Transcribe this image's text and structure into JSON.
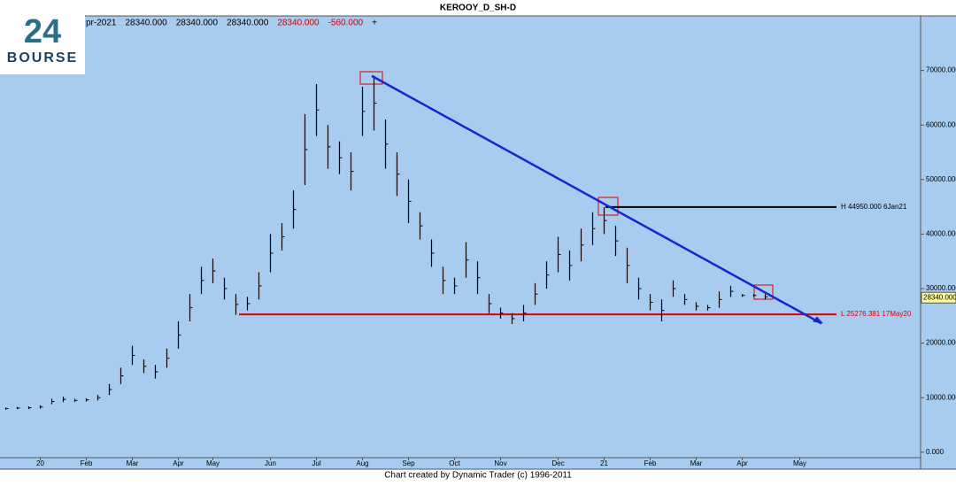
{
  "chart_data": {
    "type": "ohlc",
    "title": "KEROOY_D_SH-D",
    "header": [
      {
        "text": "pr-2021",
        "color": "#000000"
      },
      {
        "text": "28340.000",
        "color": "#000000"
      },
      {
        "text": "28340.000",
        "color": "#000000"
      },
      {
        "text": "28340.000",
        "color": "#000000"
      },
      {
        "text": "28340.000",
        "color": "#d00000"
      },
      {
        "text": "-560.000",
        "color": "#d00000"
      },
      {
        "text": "+",
        "color": "#000000"
      }
    ],
    "footer": "Chart created by Dynamic Trader  (c)  1996-2011",
    "logo": {
      "number": "24",
      "name": "BOURSE"
    },
    "categories": [
      null,
      null,
      null,
      "20",
      null,
      null,
      null,
      "Feb",
      null,
      null,
      null,
      "Mar",
      null,
      null,
      null,
      "Apr",
      null,
      null,
      "May",
      null,
      null,
      null,
      null,
      "Jun",
      null,
      null,
      null,
      "Jul",
      null,
      null,
      null,
      "Aug",
      null,
      null,
      null,
      "Sep",
      null,
      null,
      null,
      "Oct",
      null,
      null,
      null,
      "Nov",
      null,
      null,
      null,
      null,
      "Dec",
      null,
      null,
      null,
      "21",
      null,
      null,
      null,
      "Feb",
      null,
      null,
      null,
      "Mar",
      null,
      null,
      null,
      "Apr",
      null,
      null,
      null,
      null,
      "May",
      null,
      null,
      null,
      null,
      null,
      null,
      null,
      null,
      null,
      null
    ],
    "highs": [
      8200,
      8300,
      8400,
      8600,
      9800,
      10200,
      9800,
      9900,
      10500,
      12500,
      15500,
      19500,
      17000,
      16000,
      19000,
      24000,
      29000,
      34000,
      35500,
      32000,
      29000,
      28500,
      33000,
      40000,
      42000,
      48000,
      62000,
      67500,
      60000,
      57000,
      55000,
      67000,
      69000,
      61000,
      55000,
      50000,
      44000,
      39000,
      34000,
      32000,
      38500,
      35000,
      29000,
      26500,
      25500,
      27000,
      31000,
      35000,
      39500,
      37000,
      41000,
      44000,
      44950,
      41500,
      37500,
      32000,
      29000,
      28000,
      31500,
      29000,
      27500,
      27000,
      29500,
      30500,
      29000,
      29000,
      29000,
      null,
      null,
      null,
      null,
      null,
      null,
      null,
      null,
      null,
      null,
      null,
      null,
      null
    ],
    "lows": [
      7800,
      7900,
      7900,
      8000,
      8800,
      9200,
      9200,
      9300,
      9500,
      10500,
      12500,
      16000,
      14500,
      13500,
      15500,
      19000,
      24000,
      29000,
      31000,
      28000,
      25200,
      26000,
      28000,
      33000,
      37000,
      41000,
      49000,
      58000,
      52000,
      51000,
      48000,
      58000,
      59000,
      52000,
      47000,
      42000,
      39000,
      34000,
      29000,
      29000,
      32000,
      29000,
      25500,
      24500,
      23500,
      24000,
      27000,
      30000,
      33000,
      31500,
      35000,
      38000,
      40000,
      36000,
      31000,
      28000,
      26000,
      24000,
      28500,
      27000,
      26000,
      26000,
      26500,
      28500,
      28500,
      28500,
      28000,
      null,
      null,
      null,
      null,
      null,
      null,
      null,
      null,
      null,
      null,
      null,
      null,
      null
    ],
    "bar_color": "#000000",
    "background": "#a8cbf0",
    "ylim": [
      -1000,
      80000
    ],
    "yticks": [
      {
        "value": 0,
        "label": "0.000"
      },
      {
        "value": 10000,
        "label": "10000.000"
      },
      {
        "value": 20000,
        "label": "20000.000"
      },
      {
        "value": 30000,
        "label": "30000.000"
      },
      {
        "value": 40000,
        "label": "40000.000"
      },
      {
        "value": 50000,
        "label": "50000.000"
      },
      {
        "value": 60000,
        "label": "60000.000"
      },
      {
        "value": 70000,
        "label": "70000.000"
      }
    ],
    "last_price": {
      "value": 28340,
      "label": "28340.000"
    },
    "high_line": {
      "value": 44950,
      "label": "H 44950.000 6Jan21",
      "color": "#000000"
    },
    "low_line": {
      "value": 25276.381,
      "label": "L 25276.381 17May20",
      "color": "#e00000"
    },
    "trendline": {
      "values": [
        69000,
        23600
      ],
      "color": "#1428d0"
    }
  }
}
